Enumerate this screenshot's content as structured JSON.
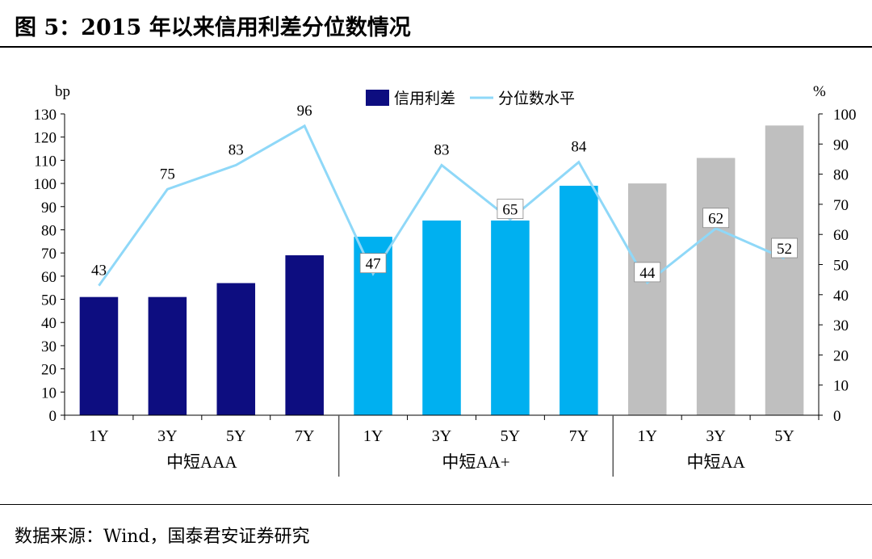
{
  "title": "图 5：2015 年以来信用利差分位数情况",
  "source": "数据来源：Wind，国泰君安证券研究",
  "chart_data": {
    "type": "bar",
    "left_unit": "bp",
    "right_unit": "%",
    "ylim_left": [
      0,
      130
    ],
    "ylim_right": [
      0,
      100
    ],
    "left_ticks": [
      0,
      10,
      20,
      30,
      40,
      50,
      60,
      70,
      80,
      90,
      100,
      110,
      120,
      130
    ],
    "right_ticks": [
      0,
      10,
      20,
      30,
      40,
      50,
      60,
      70,
      80,
      90,
      100
    ],
    "legend": {
      "bar": "信用利差",
      "line": "分位数水平",
      "position": "top-center"
    },
    "groups": [
      {
        "name": "中短AAA",
        "color": "#0d0d80",
        "categories": [
          "1Y",
          "3Y",
          "5Y",
          "7Y"
        ],
        "spread": [
          51,
          51,
          57,
          69
        ],
        "percentile": [
          43,
          75,
          83,
          96
        ]
      },
      {
        "name": "中短AA+",
        "color": "#00b0f0",
        "categories": [
          "1Y",
          "3Y",
          "5Y",
          "7Y"
        ],
        "spread": [
          77,
          84,
          84,
          99
        ],
        "percentile": [
          47,
          83,
          65,
          84
        ]
      },
      {
        "name": "中短AA",
        "color": "#bfbfbf",
        "categories": [
          "1Y",
          "3Y",
          "5Y"
        ],
        "spread": [
          100,
          111,
          125
        ],
        "percentile": [
          44,
          62,
          52
        ]
      }
    ],
    "line_color": "#8fd8f8"
  }
}
